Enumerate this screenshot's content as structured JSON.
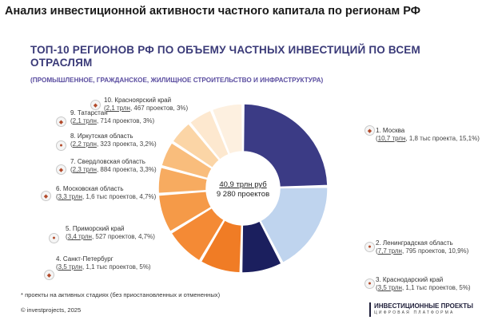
{
  "page_title": "Анализ инвестиционной активности частного капитала по регионам РФ",
  "heading": "ТОП-10 РЕГИОНОВ РФ ПО ОБЪЕМУ ЧАСТНЫХ ИНВЕСТИЦИЙ ПО ВСЕМ ОТРАСЛЯМ",
  "subheading": "(ПРОМЫШЛЕННОЕ, ГРАЖДАНСКОЕ, ЖИЛИЩНОЕ СТРОИТЕЛЬСТВО И ИНФРАСТРУКТУРА)",
  "center": {
    "total": "40,9 трлн руб",
    "projects": "9 280 проектов"
  },
  "footnote": "* проекты на активных стадиях (без приостановленных и отмененных)",
  "copyright": "© investprojects, 2025",
  "brand": {
    "name": "ИНВЕСТИЦИОННЫЕ ПРОЕКТЫ",
    "tagline": "ЦИФРОВАЯ ПЛАТФОРМА"
  },
  "legend": [
    {
      "name": "1. Москва",
      "value": "10,7 трлн",
      "rest": ", 1,8 тыс проекта, 15,1%)"
    },
    {
      "name": "2. Ленинградская область",
      "value": "7,7 трлн",
      "rest": ", 795 проектов, 10,9%)"
    },
    {
      "name": "3. Краснодарский край",
      "value": "3,5 трлн",
      "rest": ", 1,1 тыс проектов, 5%)"
    },
    {
      "name": "4. Санкт-Петербург",
      "value": "3,5 трлн",
      "rest": ", 1,1 тыс проектов, 5%)"
    },
    {
      "name": "5. Приморский край",
      "value": "3,4 трлн",
      "rest": ", 527 проектов, 4,7%)"
    },
    {
      "name": "6. Московская область",
      "value": "3,3 трлн",
      "rest": ", 1,6 тыс проектов, 4,7%)"
    },
    {
      "name": "7. Свердловская область",
      "value": "2,3 трлн",
      "rest": ", 884 проекта, 3,3%)"
    },
    {
      "name": "8. Иркутская область",
      "value": "2,2 трлн",
      "rest": ", 323 проекта, 3,2%)"
    },
    {
      "name": "9. Татарстан",
      "value": "2,1 трлн",
      "rest": ", 714 проектов, 3%)"
    },
    {
      "name": "10. Красноярский край",
      "value": "2,1 трлн",
      "rest": ", 467 проектов, 3%)"
    }
  ],
  "chart_data": {
    "type": "pie",
    "style": "donut",
    "categories": [
      "Москва",
      "Ленинградская область",
      "Краснодарский край",
      "Санкт-Петербург",
      "Приморский край",
      "Московская область",
      "Свердловская область",
      "Иркутская область",
      "Татарстан",
      "Красноярский край"
    ],
    "values": [
      10.7,
      7.7,
      3.5,
      3.5,
      3.4,
      3.3,
      2.3,
      2.2,
      2.1,
      2.1
    ],
    "projects": [
      "1,8 тыс",
      "795",
      "1,1 тыс",
      "1,1 тыс",
      "527",
      "1,6 тыс",
      "884",
      "323",
      "714",
      "467"
    ],
    "shares_percent": [
      15.1,
      10.9,
      5,
      5,
      4.7,
      4.7,
      3.3,
      3.2,
      3,
      3
    ],
    "unit": "трлн руб",
    "total": 40.9,
    "colors": [
      "#3b3b85",
      "#bfd4ee",
      "#1b1f5e",
      "#f07c25",
      "#f48a35",
      "#f59a48",
      "#f7ab60",
      "#f9bd7c",
      "#fbd5a6",
      "#fde8cf"
    ]
  }
}
